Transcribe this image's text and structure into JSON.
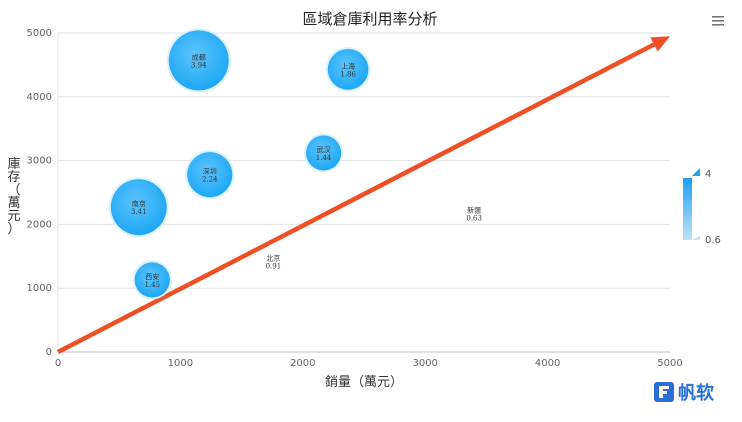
{
  "chart_data": {
    "type": "scatter",
    "title": "區域倉庫利用率分析",
    "xlabel": "銷量（萬元）",
    "ylabel": "庫存（萬元）",
    "xlim": [
      0,
      5000
    ],
    "ylim": [
      0,
      5000
    ],
    "x_ticks": [
      0,
      1000,
      2000,
      3000,
      4000,
      5000
    ],
    "y_ticks": [
      0,
      1000,
      2000,
      3000,
      4000,
      5000
    ],
    "grid": true,
    "points": [
      {
        "name": "成都",
        "x": 1150,
        "y": 4570,
        "size": 3.94
      },
      {
        "name": "上海",
        "x": 2370,
        "y": 4430,
        "size": 1.86
      },
      {
        "name": "武汉",
        "x": 2170,
        "y": 3120,
        "size": 1.44
      },
      {
        "name": "深圳",
        "x": 1240,
        "y": 2780,
        "size": 2.24
      },
      {
        "name": "南京",
        "x": 660,
        "y": 2270,
        "size": 3.41
      },
      {
        "name": "新疆",
        "x": 3400,
        "y": 2170,
        "size": 0.63
      },
      {
        "name": "北京",
        "x": 1760,
        "y": 1420,
        "size": 0.91
      },
      {
        "name": "西安",
        "x": 770,
        "y": 1130,
        "size": 1.45
      }
    ],
    "trend_arrow": {
      "x0": 0,
      "y0": 0,
      "x1": 5000,
      "y1": 4950,
      "color": "#f04e23"
    },
    "legend": {
      "type": "size-gradient",
      "position": "right",
      "max_label": "4",
      "min_label": "0.6",
      "color_max": "#1e9ff2",
      "color_min": "#bfe3fb"
    },
    "bubble_color": "#1ea7f5"
  },
  "toolbar": {
    "menu_icon": "menu-icon"
  },
  "watermark": {
    "brand": "帆软"
  }
}
